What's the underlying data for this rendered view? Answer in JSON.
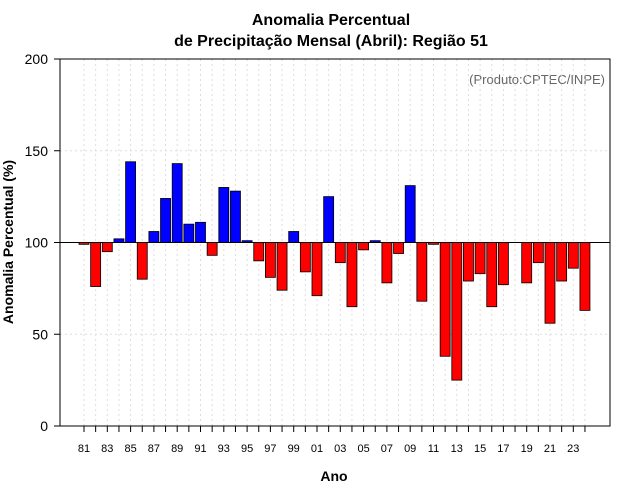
{
  "chart_data": {
    "type": "bar",
    "title_line1": "Anomalia Percentual",
    "title_line2": "de Precipitação Mensal (Abril): Região 51",
    "xlabel": "Ano",
    "ylabel": "Anomalia Percentual (%)",
    "credit": "(Produto:CPTEC/INPE)",
    "baseline": 100,
    "ylim": [
      0,
      200
    ],
    "yticks": [
      0,
      50,
      100,
      150,
      200
    ],
    "positive_color": "#0000ff",
    "negative_color": "#ff0000",
    "grid": true,
    "categories": [
      "81",
      "82",
      "83",
      "84",
      "85",
      "86",
      "87",
      "88",
      "89",
      "90",
      "91",
      "92",
      "93",
      "94",
      "95",
      "96",
      "97",
      "98",
      "99",
      "00",
      "01",
      "02",
      "03",
      "04",
      "05",
      "06",
      "07",
      "08",
      "09",
      "10",
      "11",
      "12",
      "13",
      "14",
      "15",
      "16",
      "17",
      "18",
      "19",
      "20",
      "21",
      "22",
      "23",
      "24"
    ],
    "tick_labels": [
      "81",
      "83",
      "85",
      "87",
      "89",
      "91",
      "93",
      "95",
      "97",
      "99",
      "01",
      "03",
      "05",
      "07",
      "09",
      "11",
      "13",
      "15",
      "17",
      "19",
      "21",
      "23"
    ],
    "values": [
      99,
      76,
      95,
      102,
      144,
      80,
      106,
      124,
      143,
      110,
      111,
      93,
      130,
      128,
      101,
      90,
      81,
      74,
      106,
      84,
      71,
      125,
      89,
      65,
      96,
      101,
      78,
      94,
      131,
      68,
      99,
      38,
      25,
      79,
      83,
      65,
      77,
      100,
      78,
      89,
      56,
      79,
      86,
      63
    ]
  }
}
